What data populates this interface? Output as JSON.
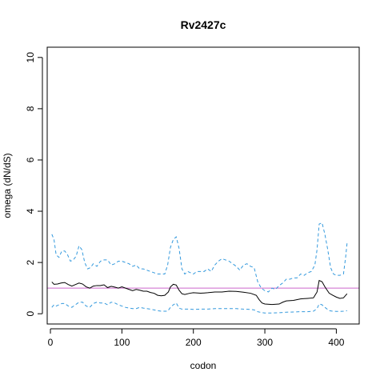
{
  "chart_data": {
    "type": "line",
    "title": "Rv2427c",
    "xlabel": "codon",
    "ylabel": "omega (dN/dS)",
    "xlim": [
      -4.5,
      432
    ],
    "ylim": [
      -0.4,
      10.4
    ],
    "x_ticks": [
      0,
      100,
      200,
      300,
      400
    ],
    "y_ticks": [
      0,
      2,
      4,
      6,
      8,
      10
    ],
    "grid": false,
    "reference_line": {
      "y": 1,
      "color": "#cc66cc"
    },
    "series": [
      {
        "role": "estimate",
        "color": "#000000",
        "style": "solid",
        "points": [
          [
            2,
            1.24
          ],
          [
            5,
            1.15
          ],
          [
            10,
            1.16
          ],
          [
            15,
            1.2
          ],
          [
            20,
            1.22
          ],
          [
            25,
            1.14
          ],
          [
            30,
            1.08
          ],
          [
            35,
            1.14
          ],
          [
            40,
            1.2
          ],
          [
            45,
            1.16
          ],
          [
            50,
            1.05
          ],
          [
            55,
            1.0
          ],
          [
            60,
            1.08
          ],
          [
            65,
            1.1
          ],
          [
            70,
            1.1
          ],
          [
            75,
            1.13
          ],
          [
            80,
            1.02
          ],
          [
            85,
            1.07
          ],
          [
            90,
            1.04
          ],
          [
            95,
            1.0
          ],
          [
            100,
            1.05
          ],
          [
            105,
            1.0
          ],
          [
            110,
            0.95
          ],
          [
            115,
            0.9
          ],
          [
            120,
            0.95
          ],
          [
            125,
            0.92
          ],
          [
            130,
            0.88
          ],
          [
            135,
            0.88
          ],
          [
            140,
            0.83
          ],
          [
            145,
            0.8
          ],
          [
            150,
            0.72
          ],
          [
            155,
            0.7
          ],
          [
            160,
            0.72
          ],
          [
            165,
            0.85
          ],
          [
            168,
            1.05
          ],
          [
            172,
            1.15
          ],
          [
            176,
            1.12
          ],
          [
            180,
            0.92
          ],
          [
            184,
            0.78
          ],
          [
            188,
            0.75
          ],
          [
            195,
            0.8
          ],
          [
            200,
            0.82
          ],
          [
            210,
            0.8
          ],
          [
            220,
            0.82
          ],
          [
            230,
            0.85
          ],
          [
            240,
            0.85
          ],
          [
            250,
            0.88
          ],
          [
            260,
            0.87
          ],
          [
            270,
            0.84
          ],
          [
            280,
            0.8
          ],
          [
            288,
            0.72
          ],
          [
            292,
            0.55
          ],
          [
            296,
            0.42
          ],
          [
            300,
            0.38
          ],
          [
            310,
            0.36
          ],
          [
            320,
            0.38
          ],
          [
            325,
            0.45
          ],
          [
            330,
            0.5
          ],
          [
            340,
            0.52
          ],
          [
            350,
            0.58
          ],
          [
            360,
            0.6
          ],
          [
            368,
            0.62
          ],
          [
            373,
            0.85
          ],
          [
            376,
            1.3
          ],
          [
            380,
            1.25
          ],
          [
            384,
            1.05
          ],
          [
            390,
            0.8
          ],
          [
            395,
            0.72
          ],
          [
            400,
            0.65
          ],
          [
            405,
            0.6
          ],
          [
            410,
            0.62
          ],
          [
            415,
            0.78
          ]
        ]
      },
      {
        "role": "upper",
        "color": "#3399dd",
        "style": "dashed",
        "points": [
          [
            2,
            3.1
          ],
          [
            5,
            2.9
          ],
          [
            8,
            2.3
          ],
          [
            12,
            2.2
          ],
          [
            16,
            2.45
          ],
          [
            20,
            2.45
          ],
          [
            24,
            2.3
          ],
          [
            28,
            2.05
          ],
          [
            32,
            2.1
          ],
          [
            36,
            2.25
          ],
          [
            40,
            2.65
          ],
          [
            44,
            2.5
          ],
          [
            48,
            2.0
          ],
          [
            52,
            1.75
          ],
          [
            56,
            1.8
          ],
          [
            60,
            1.95
          ],
          [
            65,
            1.85
          ],
          [
            70,
            2.05
          ],
          [
            75,
            2.1
          ],
          [
            80,
            2.1
          ],
          [
            85,
            1.9
          ],
          [
            90,
            1.95
          ],
          [
            95,
            2.05
          ],
          [
            100,
            2.05
          ],
          [
            105,
            2.0
          ],
          [
            110,
            1.95
          ],
          [
            115,
            1.85
          ],
          [
            120,
            1.9
          ],
          [
            125,
            1.75
          ],
          [
            130,
            1.75
          ],
          [
            135,
            1.7
          ],
          [
            140,
            1.65
          ],
          [
            145,
            1.6
          ],
          [
            150,
            1.55
          ],
          [
            155,
            1.55
          ],
          [
            160,
            1.55
          ],
          [
            164,
            1.9
          ],
          [
            168,
            2.6
          ],
          [
            172,
            2.9
          ],
          [
            176,
            3.0
          ],
          [
            180,
            2.55
          ],
          [
            184,
            1.75
          ],
          [
            188,
            1.55
          ],
          [
            192,
            1.65
          ],
          [
            196,
            1.6
          ],
          [
            200,
            1.55
          ],
          [
            205,
            1.65
          ],
          [
            210,
            1.65
          ],
          [
            215,
            1.65
          ],
          [
            220,
            1.75
          ],
          [
            225,
            1.65
          ],
          [
            230,
            1.9
          ],
          [
            235,
            2.05
          ],
          [
            240,
            2.15
          ],
          [
            245,
            2.1
          ],
          [
            250,
            2.05
          ],
          [
            255,
            1.95
          ],
          [
            260,
            1.85
          ],
          [
            265,
            1.7
          ],
          [
            270,
            1.9
          ],
          [
            275,
            1.95
          ],
          [
            280,
            1.85
          ],
          [
            285,
            1.8
          ],
          [
            290,
            1.25
          ],
          [
            295,
            1.0
          ],
          [
            300,
            0.9
          ],
          [
            305,
            0.85
          ],
          [
            310,
            1.0
          ],
          [
            315,
            0.95
          ],
          [
            320,
            1.1
          ],
          [
            325,
            1.2
          ],
          [
            330,
            1.35
          ],
          [
            335,
            1.35
          ],
          [
            340,
            1.4
          ],
          [
            345,
            1.4
          ],
          [
            350,
            1.55
          ],
          [
            355,
            1.5
          ],
          [
            360,
            1.6
          ],
          [
            365,
            1.65
          ],
          [
            370,
            1.9
          ],
          [
            373,
            2.5
          ],
          [
            376,
            3.5
          ],
          [
            380,
            3.55
          ],
          [
            384,
            3.1
          ],
          [
            388,
            2.5
          ],
          [
            392,
            1.8
          ],
          [
            396,
            1.55
          ],
          [
            400,
            1.5
          ],
          [
            405,
            1.5
          ],
          [
            410,
            1.55
          ],
          [
            413,
            2.2
          ],
          [
            415,
            2.75
          ]
        ]
      },
      {
        "role": "lower",
        "color": "#3399dd",
        "style": "dashed",
        "points": [
          [
            2,
            0.25
          ],
          [
            5,
            0.35
          ],
          [
            8,
            0.3
          ],
          [
            12,
            0.35
          ],
          [
            16,
            0.4
          ],
          [
            20,
            0.4
          ],
          [
            25,
            0.3
          ],
          [
            30,
            0.25
          ],
          [
            35,
            0.35
          ],
          [
            40,
            0.45
          ],
          [
            45,
            0.45
          ],
          [
            50,
            0.3
          ],
          [
            55,
            0.25
          ],
          [
            60,
            0.4
          ],
          [
            65,
            0.45
          ],
          [
            70,
            0.42
          ],
          [
            75,
            0.42
          ],
          [
            80,
            0.35
          ],
          [
            85,
            0.45
          ],
          [
            90,
            0.42
          ],
          [
            95,
            0.35
          ],
          [
            100,
            0.3
          ],
          [
            105,
            0.25
          ],
          [
            110,
            0.22
          ],
          [
            115,
            0.2
          ],
          [
            120,
            0.2
          ],
          [
            125,
            0.25
          ],
          [
            130,
            0.22
          ],
          [
            135,
            0.2
          ],
          [
            140,
            0.18
          ],
          [
            145,
            0.15
          ],
          [
            150,
            0.12
          ],
          [
            155,
            0.1
          ],
          [
            160,
            0.1
          ],
          [
            164,
            0.1
          ],
          [
            168,
            0.25
          ],
          [
            172,
            0.35
          ],
          [
            176,
            0.42
          ],
          [
            180,
            0.22
          ],
          [
            184,
            0.18
          ],
          [
            188,
            0.18
          ],
          [
            195,
            0.18
          ],
          [
            200,
            0.17
          ],
          [
            210,
            0.18
          ],
          [
            220,
            0.18
          ],
          [
            230,
            0.2
          ],
          [
            240,
            0.2
          ],
          [
            250,
            0.2
          ],
          [
            260,
            0.2
          ],
          [
            270,
            0.18
          ],
          [
            280,
            0.17
          ],
          [
            285,
            0.15
          ],
          [
            290,
            0.08
          ],
          [
            295,
            0.05
          ],
          [
            300,
            0.03
          ],
          [
            310,
            0.03
          ],
          [
            320,
            0.04
          ],
          [
            330,
            0.06
          ],
          [
            340,
            0.07
          ],
          [
            350,
            0.08
          ],
          [
            360,
            0.08
          ],
          [
            368,
            0.1
          ],
          [
            373,
            0.2
          ],
          [
            376,
            0.38
          ],
          [
            380,
            0.35
          ],
          [
            384,
            0.25
          ],
          [
            390,
            0.12
          ],
          [
            395,
            0.1
          ],
          [
            400,
            0.09
          ],
          [
            405,
            0.09
          ],
          [
            410,
            0.1
          ],
          [
            415,
            0.12
          ]
        ]
      }
    ]
  }
}
